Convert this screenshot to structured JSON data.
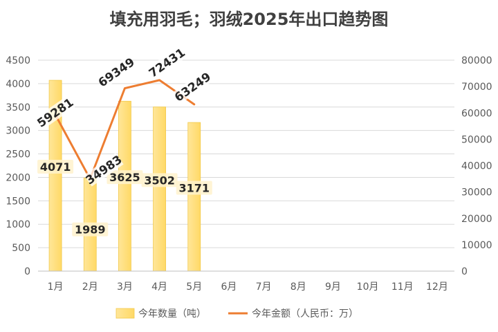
{
  "chart_data": {
    "type": "bar",
    "title": "填充用羽毛；羽绒2025年出口趋势图",
    "categories": [
      "1月",
      "2月",
      "3月",
      "4月",
      "5月",
      "6月",
      "7月",
      "8月",
      "9月",
      "10月",
      "11月",
      "12月"
    ],
    "series": [
      {
        "name": "今年数量（吨）",
        "type": "bar",
        "axis": "left",
        "color": "#FFD966",
        "values": [
          4071,
          1989,
          3625,
          3502,
          3171,
          null,
          null,
          null,
          null,
          null,
          null,
          null
        ]
      },
      {
        "name": "今年金额（人民币：万）",
        "type": "line",
        "axis": "right",
        "color": "#ED7D31",
        "values": [
          59281,
          34983,
          69349,
          72431,
          63249,
          null,
          null,
          null,
          null,
          null,
          null,
          null
        ]
      }
    ],
    "y_left": {
      "min": 0,
      "max": 4500,
      "step": 500
    },
    "y_right": {
      "min": 0,
      "max": 80000,
      "step": 10000
    },
    "grid": true,
    "legend_position": "bottom"
  }
}
